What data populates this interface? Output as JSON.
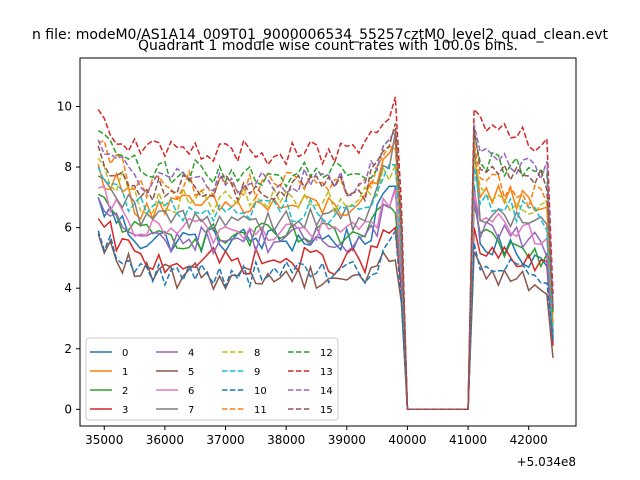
{
  "chart_data": {
    "type": "line",
    "suptitle": "n file: modeM0/AS1A14_009T01_9000006534_55257cztM0_level2_quad_clean.evt",
    "title": "Quadrant 1 module wise count rates with 100.0s bins.",
    "xlabel": "",
    "ylabel": "",
    "x_offset_label": "+5.034e8",
    "xlim": [
      34600,
      42780
    ],
    "ylim": [
      -0.55,
      11.6
    ],
    "xticks": [
      35000,
      36000,
      37000,
      38000,
      39000,
      40000,
      41000,
      42000
    ],
    "yticks": [
      0,
      2,
      4,
      6,
      8,
      10
    ],
    "legend": {
      "location": "lower-left",
      "columns": 4
    },
    "grid": false,
    "series": [
      {
        "name": "0",
        "color": "#1f77b4",
        "dash": "solid",
        "base": 5.6,
        "spike": 7.4,
        "post": 5.5,
        "end": 2.2
      },
      {
        "name": "1",
        "color": "#ff7f0e",
        "dash": "solid",
        "base": 6.7,
        "spike": 8.6,
        "post": 7.3,
        "end": 2.5
      },
      {
        "name": "2",
        "color": "#2ca02c",
        "dash": "solid",
        "base": 5.7,
        "spike": 6.8,
        "post": 5.6,
        "end": 2.3
      },
      {
        "name": "3",
        "color": "#d62728",
        "dash": "solid",
        "base": 4.9,
        "spike": 6.0,
        "post": 5.2,
        "end": 2.1
      },
      {
        "name": "4",
        "color": "#9467bd",
        "dash": "solid",
        "base": 5.6,
        "spike": 7.0,
        "post": 6.0,
        "end": 2.4
      },
      {
        "name": "5",
        "color": "#8c564b",
        "dash": "solid",
        "base": 4.4,
        "spike": 5.2,
        "post": 4.6,
        "end": 1.7
      },
      {
        "name": "6",
        "color": "#e377c2",
        "dash": "solid",
        "base": 5.9,
        "spike": 7.2,
        "post": 6.3,
        "end": 2.6
      },
      {
        "name": "7",
        "color": "#7f7f7f",
        "dash": "solid",
        "base": 6.3,
        "spike": 8.8,
        "post": 6.6,
        "end": 2.4
      },
      {
        "name": "8",
        "color": "#bcbd22",
        "dash": "dashed",
        "base": 6.9,
        "spike": 8.3,
        "post": 7.2,
        "end": 2.8
      },
      {
        "name": "9",
        "color": "#17becf",
        "dash": "dashed",
        "base": 6.6,
        "spike": 8.0,
        "post": 6.9,
        "end": 2.5
      },
      {
        "name": "10",
        "color": "#1f77b4",
        "dash": "dashed",
        "base": 4.5,
        "spike": 5.5,
        "post": 5.0,
        "end": 2.3
      },
      {
        "name": "11",
        "color": "#ff7f0e",
        "dash": "dashed",
        "base": 7.4,
        "spike": 8.8,
        "post": 7.5,
        "end": 2.9
      },
      {
        "name": "12",
        "color": "#2ca02c",
        "dash": "dashed",
        "base": 7.8,
        "spike": 9.1,
        "post": 8.3,
        "end": 3.2
      },
      {
        "name": "13",
        "color": "#d62728",
        "dash": "dashed",
        "base": 8.5,
        "spike": 9.9,
        "post": 9.3,
        "end": 3.8
      },
      {
        "name": "14",
        "color": "#9467bd",
        "dash": "dashed",
        "base": 7.5,
        "spike": 9.4,
        "post": 8.4,
        "end": 3.4
      },
      {
        "name": "15",
        "color": "#8c564b",
        "dash": "dashed",
        "base": 7.3,
        "spike": 9.3,
        "post": 8.1,
        "end": 3.3
      }
    ]
  }
}
